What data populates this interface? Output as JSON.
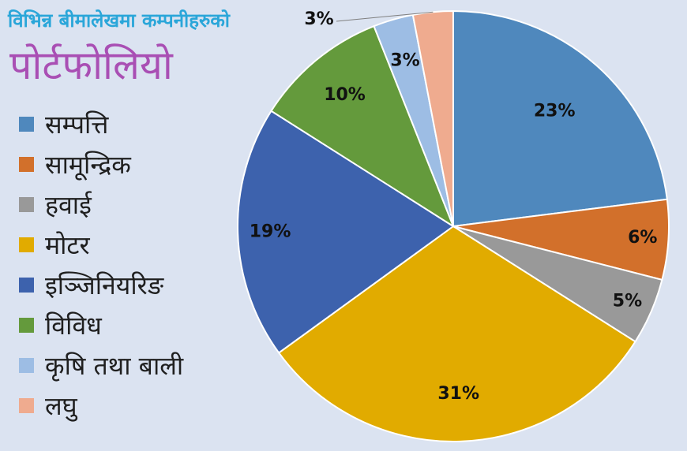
{
  "chart_data": {
    "type": "pie",
    "title": "विभिन्न बीमालेखमा कम्पनीहरुको",
    "subtitle": "पोर्टफोलियो",
    "legend_position": "left",
    "categories": [
      "सम्पत्ति",
      "सामून्द्रिक",
      "हवाई",
      "मोटर",
      "इञ्जिनियरिङ",
      "विविध",
      "कृषि तथा बाली",
      "लघु"
    ],
    "values": [
      23,
      6,
      5,
      31,
      19,
      10,
      3,
      3
    ],
    "labels": [
      "23%",
      "6%",
      "5%",
      "31%",
      "19%",
      "10%",
      "3%",
      "3%"
    ],
    "colors": [
      "#4f88bd",
      "#d2702b",
      "#999999",
      "#e1ab00",
      "#3d62ad",
      "#649a3c",
      "#9dbde4",
      "#efab8f"
    ]
  },
  "legend": {
    "items": [
      {
        "label": "सम्पत्ति",
        "color": "#4f88bd"
      },
      {
        "label": "सामून्द्रिक",
        "color": "#d2702b"
      },
      {
        "label": "हवाई",
        "color": "#999999"
      },
      {
        "label": "मोटर",
        "color": "#e1ab00"
      },
      {
        "label": "इञ्जिनियरिङ",
        "color": "#3d62ad"
      },
      {
        "label": "विविध",
        "color": "#649a3c"
      },
      {
        "label": "कृषि तथा बाली",
        "color": "#9dbde4"
      },
      {
        "label": "लघु",
        "color": "#efab8f"
      }
    ]
  }
}
